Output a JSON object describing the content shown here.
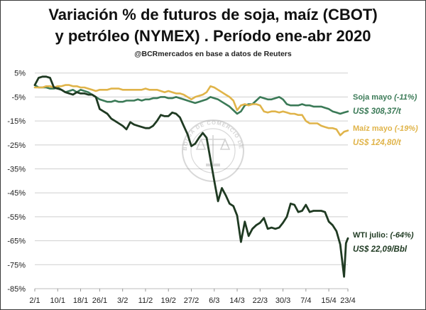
{
  "title_line1": "Variación % de futuros de soja, maíz (CBOT)",
  "title_line2": "y petróleo (NYMEX) . Período ene-abr 2020",
  "subtitle": "@BCRmercados en base a datos de Reuters",
  "watermark": "BOLSA DE COMERCIO DE ROSARIO",
  "colors": {
    "soja": "#3b7a57",
    "maiz": "#e0b44a",
    "wti": "#1f3a22",
    "grid": "#cfcfcf",
    "axis": "#bdbdbd"
  },
  "chart_data": {
    "type": "line",
    "xlabel": "",
    "ylabel": "",
    "xlim": [
      0,
      82
    ],
    "ylim": [
      -85,
      7
    ],
    "y_ticks": [
      {
        "value": 5,
        "label": "5%"
      },
      {
        "value": -5,
        "label": "-5%"
      },
      {
        "value": -15,
        "label": "-15%"
      },
      {
        "value": -25,
        "label": "-25%"
      },
      {
        "value": -35,
        "label": "-35%"
      },
      {
        "value": -45,
        "label": "-45%"
      },
      {
        "value": -55,
        "label": "-55%"
      },
      {
        "value": -65,
        "label": "-65%"
      },
      {
        "value": -75,
        "label": "-75%"
      },
      {
        "value": -85,
        "label": "-85%"
      }
    ],
    "x_ticks": [
      {
        "value": 0,
        "label": "2/1"
      },
      {
        "value": 6,
        "label": "10/1"
      },
      {
        "value": 12,
        "label": "18/1"
      },
      {
        "value": 17,
        "label": "26/1"
      },
      {
        "value": 23,
        "label": "3/2"
      },
      {
        "value": 29,
        "label": "11/2"
      },
      {
        "value": 35,
        "label": "19/2"
      },
      {
        "value": 41,
        "label": "27/2"
      },
      {
        "value": 47,
        "label": "6/3"
      },
      {
        "value": 53,
        "label": "14/3"
      },
      {
        "value": 59,
        "label": "22/3"
      },
      {
        "value": 65,
        "label": "30/3"
      },
      {
        "value": 71,
        "label": "7/4"
      },
      {
        "value": 77,
        "label": "15/4"
      },
      {
        "value": 82,
        "label": "23/4"
      }
    ],
    "series": [
      {
        "name": "Soja mayo",
        "key": "soja",
        "label_name": "Soja mayo",
        "label_pct": "(-11%)",
        "label_price": "US$ 308,37/t",
        "values": [
          [
            0,
            0
          ],
          [
            1,
            -1
          ],
          [
            2,
            -1
          ],
          [
            3,
            -1
          ],
          [
            4,
            -1.5
          ],
          [
            5,
            -1.5
          ],
          [
            6,
            -1
          ],
          [
            7,
            -2
          ],
          [
            8,
            -3
          ],
          [
            9,
            -2.5
          ],
          [
            10,
            -2
          ],
          [
            11,
            -3
          ],
          [
            12,
            -2
          ],
          [
            13,
            -2.5
          ],
          [
            14,
            -3
          ],
          [
            15,
            -4
          ],
          [
            16,
            -5
          ],
          [
            17,
            -6
          ],
          [
            18,
            -6.5
          ],
          [
            19,
            -7
          ],
          [
            20,
            -7
          ],
          [
            21,
            -6.5
          ],
          [
            22,
            -7
          ],
          [
            23,
            -7
          ],
          [
            24,
            -6.5
          ],
          [
            25,
            -6.5
          ],
          [
            26,
            -6.5
          ],
          [
            27,
            -6
          ],
          [
            28,
            -6.5
          ],
          [
            29,
            -6
          ],
          [
            30,
            -6
          ],
          [
            31,
            -5.5
          ],
          [
            32,
            -5.5
          ],
          [
            33,
            -5
          ],
          [
            34,
            -5
          ],
          [
            35,
            -5.5
          ],
          [
            36,
            -5.5
          ],
          [
            37,
            -5
          ],
          [
            38,
            -5.5
          ],
          [
            39,
            -6
          ],
          [
            40,
            -6.5
          ],
          [
            41,
            -7
          ],
          [
            42,
            -7.5
          ],
          [
            43,
            -7
          ],
          [
            44,
            -6.5
          ],
          [
            45,
            -6
          ],
          [
            46,
            -5
          ],
          [
            47,
            -5.5
          ],
          [
            48,
            -6
          ],
          [
            49,
            -7
          ],
          [
            50,
            -8
          ],
          [
            51,
            -9
          ],
          [
            52,
            -10.5
          ],
          [
            53,
            -12
          ],
          [
            54,
            -11
          ],
          [
            55,
            -8.5
          ],
          [
            56,
            -8
          ],
          [
            57,
            -8
          ],
          [
            58,
            -6.5
          ],
          [
            59,
            -5
          ],
          [
            60,
            -5.5
          ],
          [
            61,
            -6
          ],
          [
            62,
            -6
          ],
          [
            63,
            -5.5
          ],
          [
            64,
            -5
          ],
          [
            65,
            -6
          ],
          [
            66,
            -8
          ],
          [
            67,
            -8.5
          ],
          [
            68,
            -8.5
          ],
          [
            69,
            -8.5
          ],
          [
            70,
            -8
          ],
          [
            71,
            -8.5
          ],
          [
            72,
            -8.5
          ],
          [
            73,
            -9
          ],
          [
            74,
            -9
          ],
          [
            75,
            -9
          ],
          [
            76,
            -9.5
          ],
          [
            77,
            -10
          ],
          [
            78,
            -11
          ],
          [
            79,
            -11.5
          ],
          [
            80,
            -12
          ],
          [
            81,
            -11.5
          ],
          [
            82,
            -11
          ]
        ]
      },
      {
        "name": "Maíz mayo",
        "key": "maiz",
        "label_name": "Maíz mayo",
        "label_pct": "(-19%)",
        "label_price": "US$ 124,80/t",
        "values": [
          [
            0,
            -1
          ],
          [
            1,
            -1
          ],
          [
            2,
            -1
          ],
          [
            3,
            -0.5
          ],
          [
            4,
            -0.5
          ],
          [
            5,
            -1
          ],
          [
            6,
            -0.5
          ],
          [
            7,
            -0.5
          ],
          [
            8,
            0
          ],
          [
            9,
            0
          ],
          [
            10,
            -0.5
          ],
          [
            11,
            -0.5
          ],
          [
            12,
            -1
          ],
          [
            13,
            -1
          ],
          [
            14,
            -1.5
          ],
          [
            15,
            -2
          ],
          [
            16,
            -2.5
          ],
          [
            17,
            -2
          ],
          [
            18,
            -2
          ],
          [
            19,
            -2
          ],
          [
            20,
            -1.5
          ],
          [
            21,
            -1.5
          ],
          [
            22,
            -1.5
          ],
          [
            23,
            -2
          ],
          [
            24,
            -2
          ],
          [
            25,
            -2
          ],
          [
            26,
            -2
          ],
          [
            27,
            -2
          ],
          [
            28,
            -2
          ],
          [
            29,
            -1.5
          ],
          [
            30,
            -2
          ],
          [
            31,
            -2
          ],
          [
            32,
            -2
          ],
          [
            33,
            -2.5
          ],
          [
            34,
            -3
          ],
          [
            35,
            -2.5
          ],
          [
            36,
            -3
          ],
          [
            37,
            -3.5
          ],
          [
            38,
            -3.5
          ],
          [
            39,
            -4
          ],
          [
            40,
            -5
          ],
          [
            41,
            -6
          ],
          [
            42,
            -5
          ],
          [
            43,
            -4.5
          ],
          [
            44,
            -4
          ],
          [
            45,
            -3
          ],
          [
            46,
            -0.5
          ],
          [
            47,
            -1
          ],
          [
            48,
            -2
          ],
          [
            49,
            -3
          ],
          [
            50,
            -4
          ],
          [
            51,
            -5
          ],
          [
            52,
            -6.5
          ],
          [
            53,
            -10.5
          ],
          [
            54,
            -8.5
          ],
          [
            55,
            -8
          ],
          [
            56,
            -8.5
          ],
          [
            57,
            -8
          ],
          [
            58,
            -8
          ],
          [
            59,
            -8.5
          ],
          [
            60,
            -11
          ],
          [
            61,
            -11.5
          ],
          [
            62,
            -11
          ],
          [
            63,
            -11
          ],
          [
            64,
            -11.5
          ],
          [
            65,
            -11
          ],
          [
            66,
            -11.5
          ],
          [
            67,
            -12
          ],
          [
            68,
            -12
          ],
          [
            69,
            -12.5
          ],
          [
            70,
            -12.5
          ],
          [
            71,
            -15
          ],
          [
            72,
            -16
          ],
          [
            73,
            -16
          ],
          [
            74,
            -16
          ],
          [
            75,
            -17
          ],
          [
            76,
            -17.5
          ],
          [
            77,
            -18
          ],
          [
            78,
            -18
          ],
          [
            79,
            -18.5
          ],
          [
            80,
            -21
          ],
          [
            81,
            -19.5
          ],
          [
            82,
            -19
          ]
        ]
      },
      {
        "name": "WTI julio",
        "key": "wti",
        "label_name": "WTI julio:",
        "label_pct": "(-64%)",
        "label_price": "US$ 22,09/Bbl",
        "values": [
          [
            0,
            0
          ],
          [
            1,
            3
          ],
          [
            2,
            3.5
          ],
          [
            3,
            3.5
          ],
          [
            4,
            3
          ],
          [
            5,
            -1
          ],
          [
            6,
            -1.5
          ],
          [
            7,
            -2
          ],
          [
            8,
            -3
          ],
          [
            9,
            -3.5
          ],
          [
            10,
            -4
          ],
          [
            11,
            -3
          ],
          [
            12,
            -3.5
          ],
          [
            13,
            -3.5
          ],
          [
            14,
            -4
          ],
          [
            15,
            -4
          ],
          [
            16,
            -5
          ],
          [
            17,
            -10
          ],
          [
            18,
            -11
          ],
          [
            19,
            -12
          ],
          [
            20,
            -14
          ],
          [
            21,
            -15
          ],
          [
            22,
            -16
          ],
          [
            23,
            -17
          ],
          [
            24,
            -18.5
          ],
          [
            25,
            -15.5
          ],
          [
            26,
            -16.5
          ],
          [
            27,
            -17
          ],
          [
            28,
            -17.5
          ],
          [
            29,
            -18
          ],
          [
            30,
            -18
          ],
          [
            31,
            -17
          ],
          [
            32,
            -15
          ],
          [
            33,
            -12.5
          ],
          [
            34,
            -13
          ],
          [
            35,
            -13
          ],
          [
            36,
            -11.5
          ],
          [
            37,
            -12
          ],
          [
            38,
            -13.5
          ],
          [
            39,
            -17
          ],
          [
            40,
            -20.5
          ],
          [
            41,
            -25.5
          ],
          [
            42,
            -24.5
          ],
          [
            43,
            -22
          ],
          [
            44,
            -20
          ],
          [
            45,
            -22
          ],
          [
            46,
            -31
          ],
          [
            47,
            -40
          ],
          [
            48,
            -48.5
          ],
          [
            49,
            -43
          ],
          [
            50,
            -46
          ],
          [
            51,
            -49.5
          ],
          [
            52,
            -50.5
          ],
          [
            53,
            -54.5
          ],
          [
            54,
            -65.5
          ],
          [
            55,
            -57
          ],
          [
            56,
            -63
          ],
          [
            57,
            -60
          ],
          [
            58,
            -58.5
          ],
          [
            59,
            -57.5
          ],
          [
            60,
            -55.5
          ],
          [
            61,
            -60
          ],
          [
            62,
            -59.5
          ],
          [
            63,
            -60
          ],
          [
            64,
            -59.5
          ],
          [
            65,
            -57.5
          ],
          [
            66,
            -55
          ],
          [
            67,
            -49.5
          ],
          [
            68,
            -50
          ],
          [
            69,
            -53
          ],
          [
            70,
            -52.5
          ],
          [
            71,
            -50
          ],
          [
            72,
            -53
          ],
          [
            73,
            -52.5
          ],
          [
            74,
            -52.5
          ],
          [
            75,
            -52.5
          ],
          [
            76,
            -53
          ],
          [
            77,
            -57
          ],
          [
            78,
            -58.5
          ],
          [
            79,
            -61
          ],
          [
            80,
            -66.5
          ],
          [
            81,
            -80
          ],
          [
            81.5,
            -66
          ],
          [
            82,
            -64
          ]
        ]
      }
    ]
  }
}
